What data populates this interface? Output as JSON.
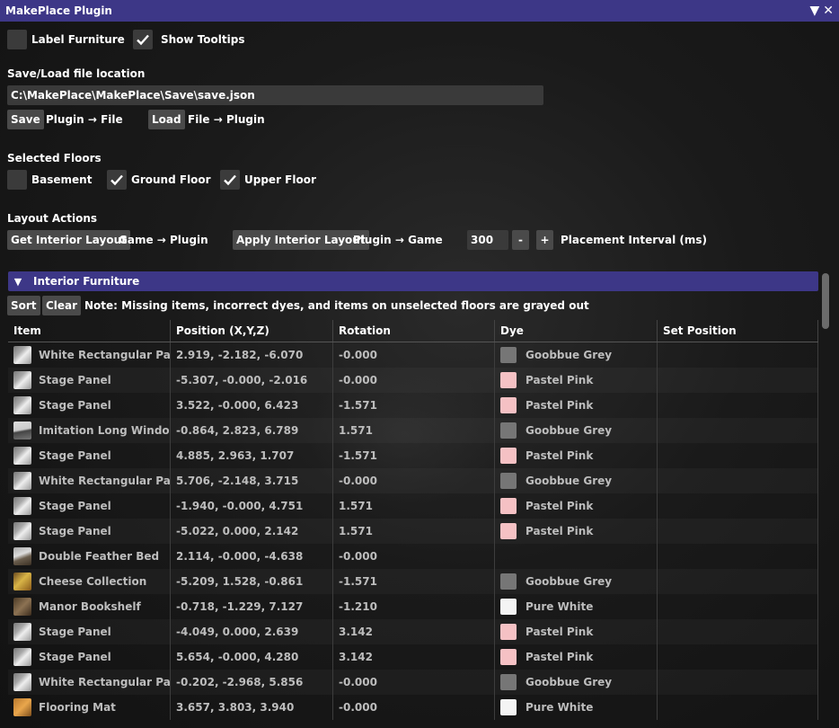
{
  "window": {
    "title": "MakePlace Plugin"
  },
  "options": {
    "label_furniture": {
      "label": "Label Furniture",
      "checked": false
    },
    "show_tooltips": {
      "label": "Show Tooltips",
      "checked": true
    }
  },
  "file": {
    "heading": "Save/Load file location",
    "path": "C:\\MakePlace\\MakePlace\\Save\\save.json",
    "save_label": "Save",
    "save_desc": "Plugin → File",
    "load_label": "Load",
    "load_desc": "File → Plugin"
  },
  "floors": {
    "heading": "Selected Floors",
    "basement": {
      "label": "Basement",
      "checked": false
    },
    "ground": {
      "label": "Ground Floor",
      "checked": true
    },
    "upper": {
      "label": "Upper Floor",
      "checked": true
    }
  },
  "layout": {
    "heading": "Layout Actions",
    "get_label": "Get Interior Layout",
    "get_desc": "Game → Plugin",
    "apply_label": "Apply Interior Layout",
    "apply_desc": "Plugin → Game",
    "interval_value": "300",
    "minus_label": "-",
    "plus_label": "+",
    "interval_label": "Placement Interval (ms)"
  },
  "furniture": {
    "section_title": "Interior Furniture",
    "sort_label": "Sort",
    "clear_label": "Clear",
    "note": "Note: Missing items, incorrect dyes, and items on unselected floors are grayed out",
    "columns": [
      "Item",
      "Position (X,Y,Z)",
      "Rotation",
      "Dye",
      "Set Position"
    ],
    "rows": [
      {
        "icon": "panel-icon",
        "item": "White Rectangular Partition",
        "position": "2.919, -2.182, -6.070",
        "rotation": "-0.000",
        "dye": "Goobbue Grey",
        "dye_color": "#767676"
      },
      {
        "icon": "panel-icon",
        "item": "Stage Panel",
        "position": "-5.307, -0.000, -2.016",
        "rotation": "-0.000",
        "dye": "Pastel Pink",
        "dye_color": "#f5c1c4"
      },
      {
        "icon": "panel-icon",
        "item": "Stage Panel",
        "position": "3.522, -0.000, 6.423",
        "rotation": "-1.571",
        "dye": "Pastel Pink",
        "dye_color": "#f5c1c4"
      },
      {
        "icon": "window-icon",
        "item": "Imitation Long Window",
        "position": "-0.864, 2.823, 6.789",
        "rotation": "1.571",
        "dye": "Goobbue Grey",
        "dye_color": "#767676"
      },
      {
        "icon": "panel-icon",
        "item": "Stage Panel",
        "position": "4.885, 2.963, 1.707",
        "rotation": "-1.571",
        "dye": "Pastel Pink",
        "dye_color": "#f5c1c4"
      },
      {
        "icon": "panel-icon",
        "item": "White Rectangular Partition",
        "position": "5.706, -2.148, 3.715",
        "rotation": "-0.000",
        "dye": "Goobbue Grey",
        "dye_color": "#767676"
      },
      {
        "icon": "panel-icon",
        "item": "Stage Panel",
        "position": "-1.940, -0.000, 4.751",
        "rotation": "1.571",
        "dye": "Pastel Pink",
        "dye_color": "#f5c1c4"
      },
      {
        "icon": "panel-icon",
        "item": "Stage Panel",
        "position": "-5.022, 0.000, 2.142",
        "rotation": "1.571",
        "dye": "Pastel Pink",
        "dye_color": "#f5c1c4"
      },
      {
        "icon": "bed-icon",
        "item": "Double Feather Bed",
        "position": "2.114, -0.000, -4.638",
        "rotation": "-0.000",
        "dye": "",
        "dye_color": ""
      },
      {
        "icon": "cheese-icon",
        "item": "Cheese Collection",
        "position": "-5.209, 1.528, -0.861",
        "rotation": "-1.571",
        "dye": "Goobbue Grey",
        "dye_color": "#767676"
      },
      {
        "icon": "bookshelf-icon",
        "item": "Manor Bookshelf",
        "position": "-0.718, -1.229, 7.127",
        "rotation": "-1.210",
        "dye": "Pure White",
        "dye_color": "#f4f4f4"
      },
      {
        "icon": "panel-icon",
        "item": "Stage Panel",
        "position": "-4.049, 0.000, 2.639",
        "rotation": "3.142",
        "dye": "Pastel Pink",
        "dye_color": "#f5c1c4"
      },
      {
        "icon": "panel-icon",
        "item": "Stage Panel",
        "position": "5.654, -0.000, 4.280",
        "rotation": "3.142",
        "dye": "Pastel Pink",
        "dye_color": "#f5c1c4"
      },
      {
        "icon": "panel-icon",
        "item": "White Rectangular Partition",
        "position": "-0.202, -2.968, 5.856",
        "rotation": "-0.000",
        "dye": "Goobbue Grey",
        "dye_color": "#767676"
      },
      {
        "icon": "mat-icon",
        "item": "Flooring Mat",
        "position": "3.657, 3.803, 3.940",
        "rotation": "-0.000",
        "dye": "Pure White",
        "dye_color": "#f4f4f4"
      }
    ]
  },
  "colors": {
    "accent": "#3d3787",
    "button": "#4a4a4a",
    "checkmark": "#ffffff"
  }
}
